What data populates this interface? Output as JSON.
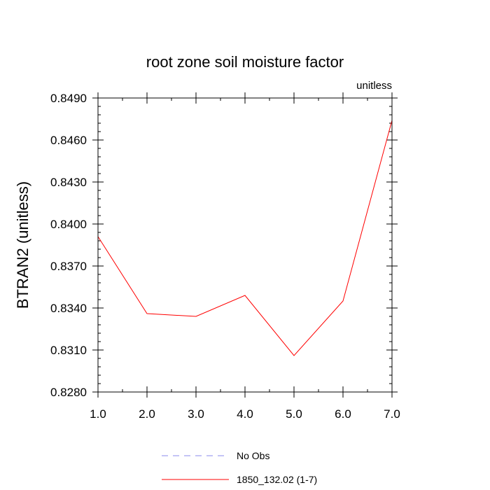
{
  "chart_data": {
    "type": "line",
    "title": "root zone soil moisture factor",
    "units_label": "unitless",
    "xlabel": "",
    "ylabel": "BTRAN2  (unitless)",
    "xlim": [
      1.0,
      7.0
    ],
    "ylim": [
      0.828,
      0.849
    ],
    "x_ticks": [
      1.0,
      2.0,
      3.0,
      4.0,
      5.0,
      6.0,
      7.0
    ],
    "x_tick_labels": [
      "1.0",
      "2.0",
      "3.0",
      "4.0",
      "5.0",
      "6.0",
      "7.0"
    ],
    "y_ticks": [
      0.828,
      0.831,
      0.834,
      0.837,
      0.84,
      0.843,
      0.846,
      0.849
    ],
    "y_tick_labels": [
      "0.8280",
      "0.8310",
      "0.8340",
      "0.8370",
      "0.8400",
      "0.8430",
      "0.8460",
      "0.8490"
    ],
    "x_minor_step": 0.5,
    "y_minor_step": 0.0006,
    "grid": false,
    "legend_position": "bottom-center",
    "series": [
      {
        "name": "No Obs",
        "color": "#8888ee",
        "dash": "dashed",
        "x": [],
        "y": []
      },
      {
        "name": "1850_132.02 (1-7)",
        "color": "#ff0000",
        "dash": "solid",
        "x": [
          1.0,
          2.0,
          3.0,
          4.0,
          5.0,
          6.0,
          7.0
        ],
        "y": [
          0.8391,
          0.8336,
          0.8334,
          0.8349,
          0.8306,
          0.8345,
          0.8474
        ]
      }
    ]
  }
}
